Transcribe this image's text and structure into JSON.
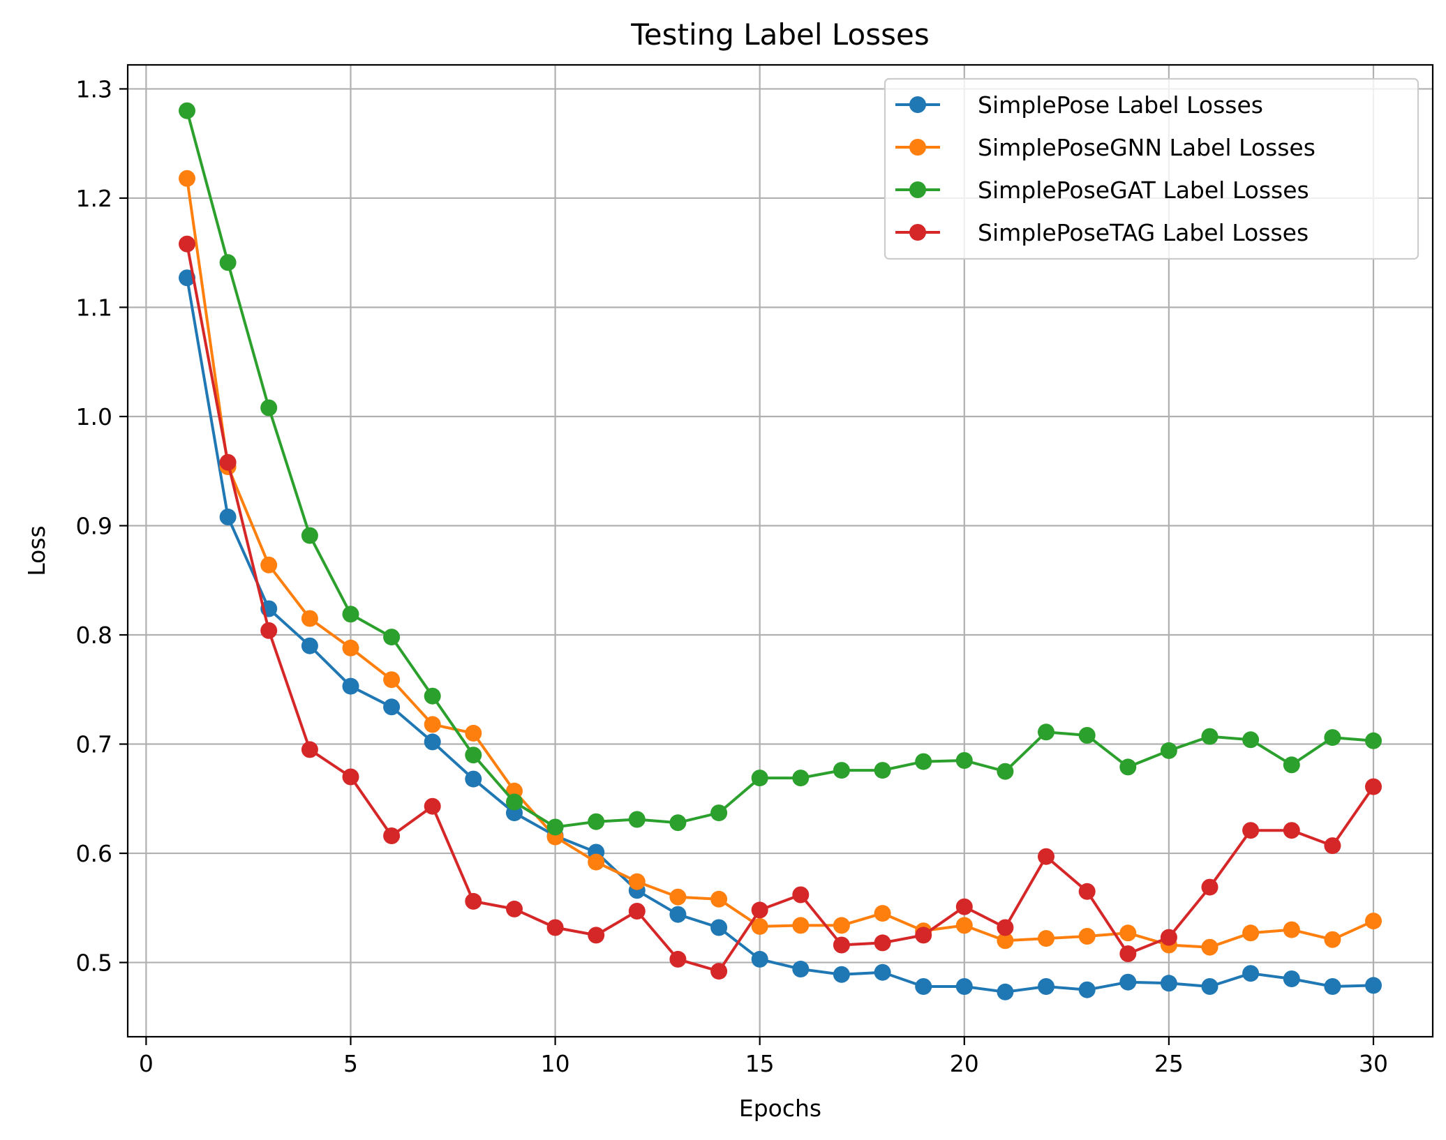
{
  "chart_data": {
    "type": "line",
    "title": "Testing Label Losses",
    "xlabel": "Epochs",
    "ylabel": "Loss",
    "xlim": [
      -0.45,
      31.45
    ],
    "ylim": [
      0.432,
      1.322
    ],
    "xticks": [
      0,
      5,
      10,
      15,
      20,
      25,
      30
    ],
    "yticks": [
      0.5,
      0.6,
      0.7,
      0.8,
      0.9,
      1.0,
      1.1,
      1.2,
      1.3
    ],
    "ytick_labels": [
      "0.5",
      "0.6",
      "0.7",
      "0.8",
      "0.9",
      "1.0",
      "1.1",
      "1.2",
      "1.3"
    ],
    "grid": true,
    "legend_position": "top-right",
    "x": [
      1,
      2,
      3,
      4,
      5,
      6,
      7,
      8,
      9,
      10,
      11,
      12,
      13,
      14,
      15,
      16,
      17,
      18,
      19,
      20,
      21,
      22,
      23,
      24,
      25,
      26,
      27,
      28,
      29,
      30
    ],
    "series": [
      {
        "name": "SimplePose Label Losses",
        "color": "#1f77b4",
        "values": [
          1.127,
          0.908,
          0.824,
          0.79,
          0.753,
          0.734,
          0.702,
          0.668,
          0.637,
          0.616,
          0.601,
          0.566,
          0.544,
          0.532,
          0.503,
          0.494,
          0.489,
          0.491,
          0.478,
          0.478,
          0.473,
          0.478,
          0.475,
          0.482,
          0.481,
          0.478,
          0.49,
          0.485,
          0.478,
          0.479
        ]
      },
      {
        "name": "SimplePoseGNN Label Losses",
        "color": "#ff7f0e",
        "values": [
          1.218,
          0.954,
          0.864,
          0.815,
          0.788,
          0.759,
          0.718,
          0.71,
          0.657,
          0.615,
          0.592,
          0.574,
          0.56,
          0.558,
          0.533,
          0.534,
          0.534,
          0.545,
          0.529,
          0.534,
          0.52,
          0.522,
          0.524,
          0.527,
          0.516,
          0.514,
          0.527,
          0.53,
          0.521,
          0.538
        ]
      },
      {
        "name": "SimplePoseGAT Label Losses",
        "color": "#2ca02c",
        "values": [
          1.28,
          1.141,
          1.008,
          0.891,
          0.819,
          0.798,
          0.744,
          0.69,
          0.647,
          0.624,
          0.629,
          0.631,
          0.628,
          0.637,
          0.669,
          0.669,
          0.676,
          0.676,
          0.684,
          0.685,
          0.675,
          0.711,
          0.708,
          0.679,
          0.694,
          0.707,
          0.704,
          0.681,
          0.706,
          0.703
        ]
      },
      {
        "name": "SimplePoseTAG Label Losses",
        "color": "#d62728",
        "values": [
          1.158,
          0.958,
          0.804,
          0.695,
          0.67,
          0.616,
          0.643,
          0.556,
          0.549,
          0.532,
          0.525,
          0.547,
          0.503,
          0.492,
          0.548,
          0.562,
          0.516,
          0.518,
          0.525,
          0.551,
          0.532,
          0.597,
          0.565,
          0.508,
          0.523,
          0.569,
          0.621,
          0.621,
          0.607,
          0.661
        ]
      }
    ]
  }
}
